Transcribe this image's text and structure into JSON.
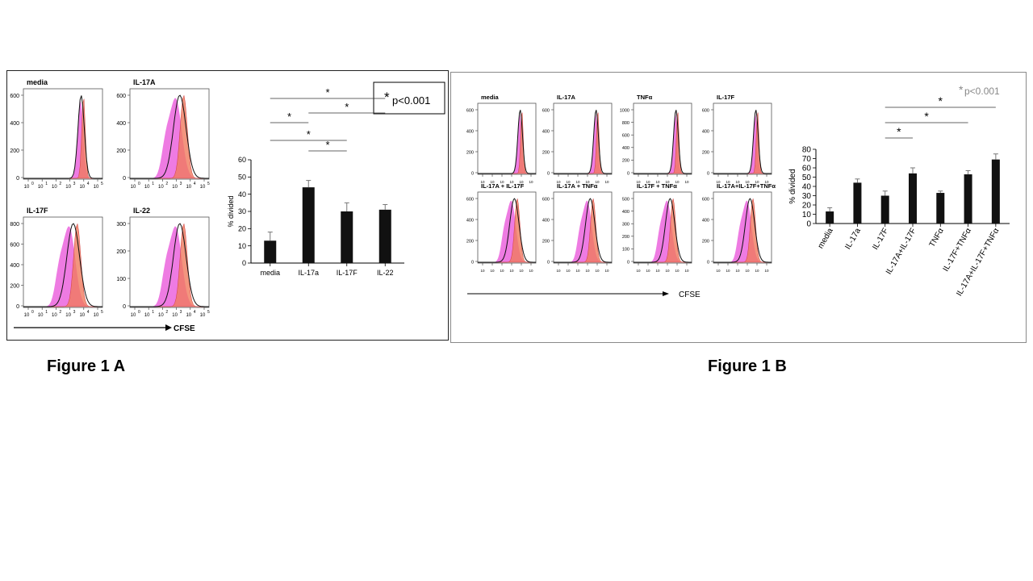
{
  "figureA": {
    "caption": "Figure 1 A",
    "histograms": [
      {
        "title": "media",
        "yticks": [
          "0",
          "200",
          "400",
          "600"
        ]
      },
      {
        "title": "IL-17A",
        "yticks": [
          "0",
          "200",
          "400",
          "600"
        ]
      },
      {
        "title": "IL-17F",
        "yticks": [
          "0",
          "200",
          "400",
          "600",
          "800"
        ]
      },
      {
        "title": "IL-22",
        "yticks": [
          "0",
          "100",
          "200",
          "300"
        ]
      }
    ],
    "x_tick_labels": [
      "10",
      "10",
      "10",
      "10",
      "10",
      "10"
    ],
    "x_tick_exponents": [
      "0",
      "1",
      "2",
      "3",
      "4",
      "5"
    ],
    "axis_label": "CFSE",
    "legend": {
      "star": "*",
      "text": "p<0.001"
    },
    "sig_marker": "*"
  },
  "figureB": {
    "caption": "Figure 1 B",
    "histograms": [
      {
        "title": "media",
        "yticks": [
          "0",
          "200",
          "400",
          "600"
        ]
      },
      {
        "title": "IL-17A",
        "yticks": [
          "0",
          "200",
          "400",
          "600"
        ]
      },
      {
        "title": "TNFα",
        "yticks": [
          "0",
          "200",
          "400",
          "600",
          "800",
          "1000"
        ]
      },
      {
        "title": "IL-17F",
        "yticks": [
          "0",
          "200",
          "400",
          "600"
        ]
      },
      {
        "title": "IL-17A + IL-17F",
        "yticks": [
          "0",
          "200",
          "400",
          "600"
        ]
      },
      {
        "title": "IL-17A + TNFα",
        "yticks": [
          "0",
          "200",
          "400",
          "600"
        ]
      },
      {
        "title": "IL-17F + TNFα",
        "yticks": [
          "0",
          "100",
          "200",
          "300",
          "400",
          "500"
        ]
      },
      {
        "title": "IL-17A+IL-17F+TNFα",
        "yticks": [
          "0",
          "200",
          "400",
          "600"
        ]
      }
    ],
    "axis_label": "CFSE",
    "legend": {
      "star": "*",
      "text": "p<0.001"
    },
    "sig_marker": "*"
  },
  "chart_data": [
    {
      "type": "bar",
      "categories": [
        "media",
        "IL-17a",
        "IL-17F",
        "IL-22"
      ],
      "values": [
        13,
        44,
        30,
        31
      ],
      "errors": [
        5,
        4,
        5,
        3
      ],
      "ylabel": "% divided",
      "ylim": [
        0,
        60
      ],
      "yticks": [
        0,
        10,
        20,
        30,
        40,
        50,
        60
      ],
      "significance": [
        {
          "from": "media",
          "to": "IL-17a"
        },
        {
          "from": "media",
          "to": "IL-17F"
        },
        {
          "from": "media",
          "to": "IL-22"
        },
        {
          "from": "IL-17a",
          "to": "IL-17F"
        },
        {
          "from": "IL-17a",
          "to": "IL-22"
        }
      ]
    },
    {
      "type": "bar",
      "categories": [
        "media",
        "IL-17a",
        "IL-17F",
        "IL-17A+IL-17F",
        "TNFα",
        "IL-17F+TNFα",
        "IL-17A+IL-17F+TNFα"
      ],
      "values": [
        13,
        44,
        30,
        54,
        33,
        53,
        69
      ],
      "errors": [
        4,
        4,
        5,
        6,
        2,
        4,
        6
      ],
      "ylabel": "% divided",
      "ylim": [
        0,
        80
      ],
      "yticks": [
        0,
        10,
        20,
        30,
        40,
        50,
        60,
        70,
        80
      ],
      "significance": [
        {
          "from": "IL-17F",
          "to": "IL-17A+IL-17F"
        },
        {
          "from": "IL-17F",
          "to": "IL-17F+TNFα"
        },
        {
          "from": "IL-17F",
          "to": "IL-17A+IL-17F+TNFα"
        }
      ]
    }
  ]
}
